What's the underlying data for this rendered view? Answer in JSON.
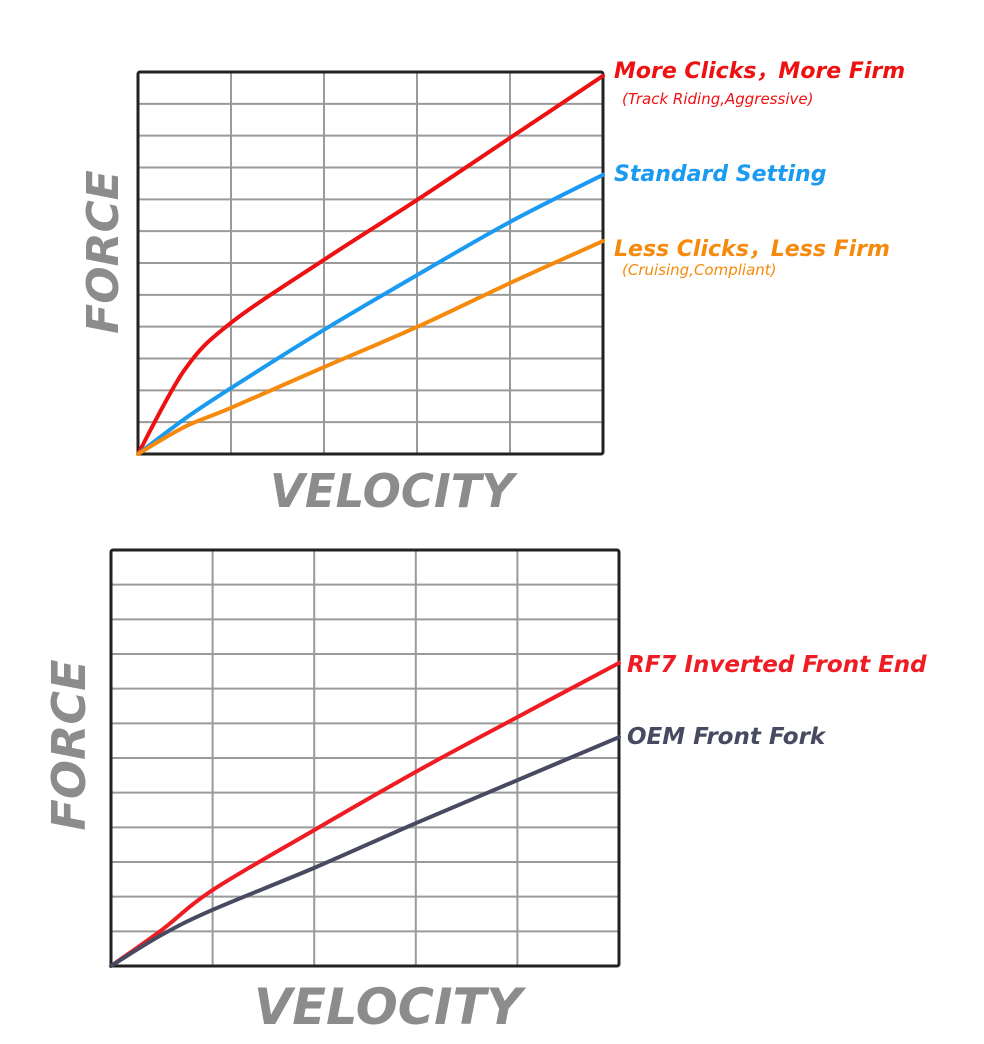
{
  "chart_data": [
    {
      "type": "line",
      "title": "",
      "xlabel": "VELOCITY",
      "ylabel": "FORCE",
      "grid": true,
      "grid_columns": 5,
      "grid_rows": 12,
      "xlim": [
        0,
        5
      ],
      "ylim": [
        0,
        12
      ],
      "x": [
        0,
        0.5,
        1,
        2,
        3,
        4,
        5
      ],
      "legend_position": "right (inline at line ends)",
      "series": [
        {
          "name": "More Clicks，More Firm",
          "note": "(Track Riding,Aggressive)",
          "color": "#ee1111",
          "values": [
            0,
            2.64,
            4.12,
            6.1,
            7.98,
            9.93,
            11.88
          ]
        },
        {
          "name": "Standard Setting",
          "note": "",
          "color": "#1a9af0",
          "values": [
            0,
            1.1,
            2.07,
            3.9,
            5.62,
            7.29,
            8.77
          ]
        },
        {
          "name": "Less Clicks，Less Firm",
          "note": "(Cruising,Compliant)",
          "color": "#f58a0c",
          "values": [
            0,
            0.85,
            1.45,
            2.73,
            3.99,
            5.37,
            6.69
          ]
        }
      ]
    },
    {
      "type": "line",
      "title": "",
      "xlabel": "VELOCITY",
      "ylabel": "FORCE",
      "grid": true,
      "grid_columns": 5,
      "grid_rows": 12,
      "xlim": [
        0,
        5
      ],
      "ylim": [
        0,
        12
      ],
      "x": [
        0,
        0.5,
        1,
        2,
        3,
        4,
        5
      ],
      "legend_position": "right (inline at line ends)",
      "series": [
        {
          "name": "RF7 Inverted Front End",
          "note": "",
          "color": "#f01c24",
          "values": [
            0,
            1.04,
            2.19,
            3.92,
            5.6,
            7.18,
            8.74
          ]
        },
        {
          "name": "OEM Front Fork",
          "note": "",
          "color": "#474a60",
          "values": [
            0,
            0.9,
            1.62,
            2.83,
            4.12,
            5.36,
            6.6
          ]
        }
      ]
    }
  ],
  "labels": {
    "top": {
      "ylabel": "FORCE",
      "xlabel": "VELOCITY",
      "more_firm": "More Clicks，More Firm",
      "more_firm_sub": "(Track Riding,Aggressive)",
      "standard": "Standard Setting",
      "less_firm": "Less Clicks，Less Firm",
      "less_firm_sub": "(Cruising,Compliant)"
    },
    "bottom": {
      "ylabel": "FORCE",
      "xlabel": "VELOCITY",
      "rf7": "RF7 Inverted Front End",
      "oem": "OEM Front Fork"
    }
  },
  "colors": {
    "red": "#ee1111",
    "blue": "#1a9af0",
    "orange": "#f58a0c",
    "rf7_red": "#f01c24",
    "oem_grey": "#474a60",
    "axis_label_grey": "#8c8c8c",
    "grid": "#9a9a9a",
    "frame": "#222222"
  }
}
